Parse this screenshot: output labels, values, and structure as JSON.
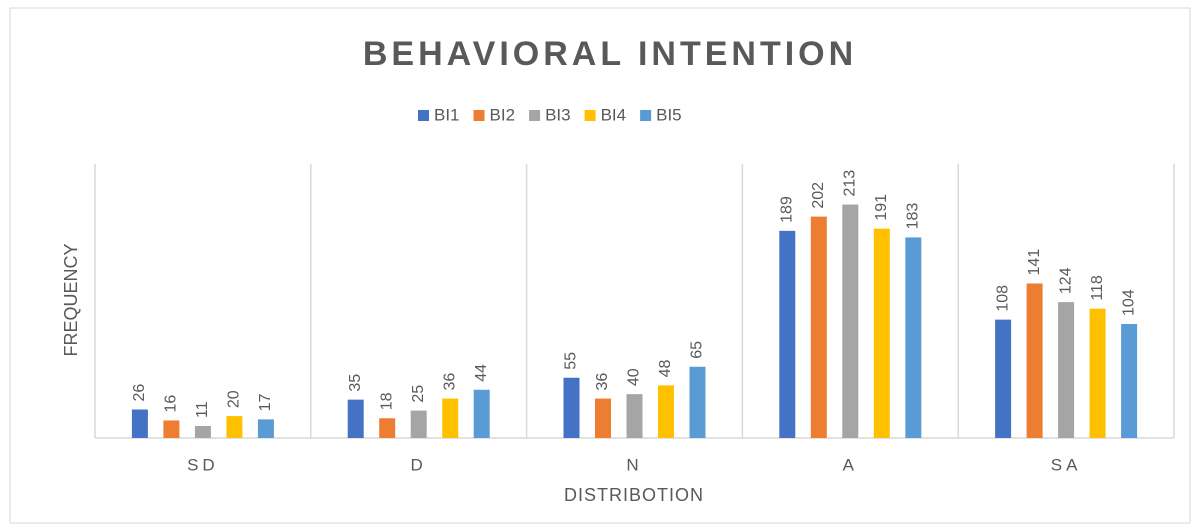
{
  "chart_data": {
    "type": "bar",
    "title": "BEHAVIORAL INTENTION",
    "x_label": "DISTRIBOTION",
    "y_label": "FREQUENCY",
    "categories": [
      "SD",
      "D",
      "N",
      "A",
      "SA"
    ],
    "series": [
      {
        "name": "BI1",
        "color": "#4472c4",
        "values": [
          26,
          35,
          55,
          189,
          108
        ]
      },
      {
        "name": "BI2",
        "color": "#ed7d31",
        "values": [
          16,
          18,
          36,
          202,
          141
        ]
      },
      {
        "name": "BI3",
        "color": "#a5a5a5",
        "values": [
          11,
          25,
          40,
          213,
          124
        ]
      },
      {
        "name": "BI4",
        "color": "#ffc000",
        "values": [
          20,
          36,
          48,
          191,
          118
        ]
      },
      {
        "name": "BI5",
        "color": "#5b9bd5",
        "values": [
          17,
          44,
          65,
          183,
          104
        ]
      }
    ],
    "ylim": [
      0,
      250
    ],
    "legend": "top",
    "data_labels": true
  }
}
